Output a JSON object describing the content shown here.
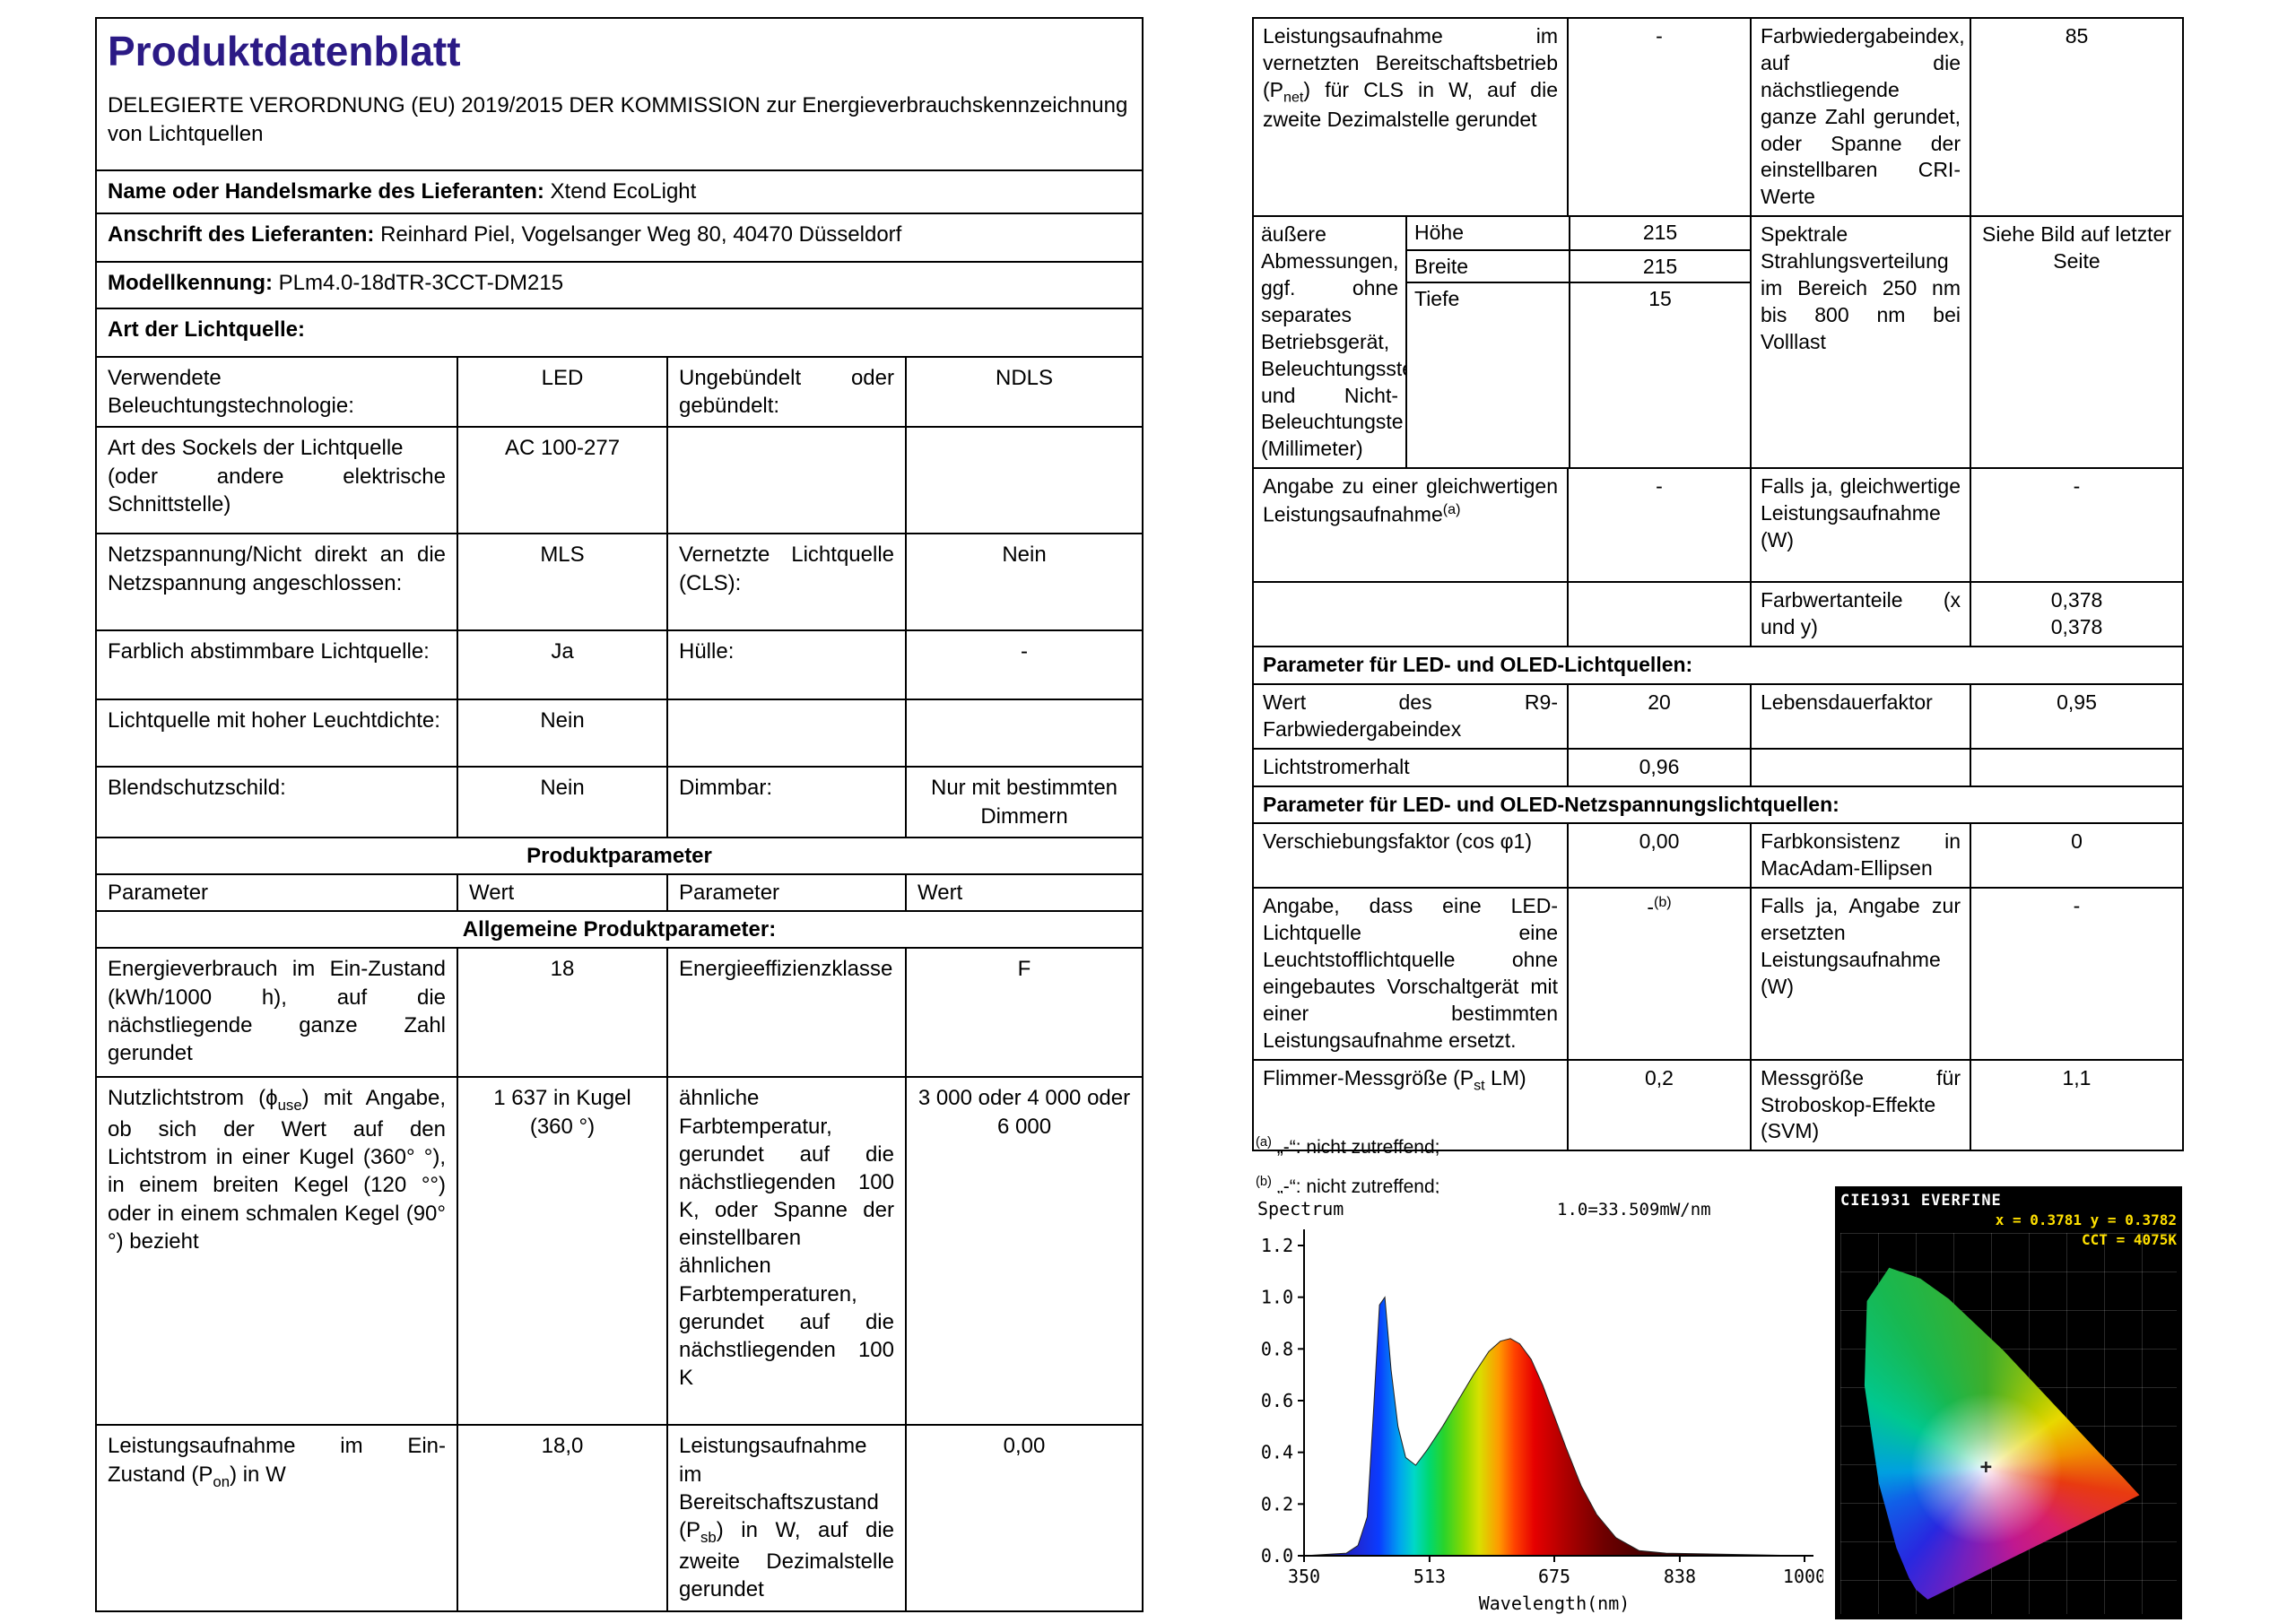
{
  "accent_color": "#2b1a85",
  "left": {
    "title": "Produktdatenblatt",
    "subtitle": "DELEGIERTE VERORDNUNG (EU) 2019/2015 DER KOMMISSION zur Energieverbrauchskennzeichnung von Lichtquellen",
    "supplier": {
      "name_label": "Name oder Handelsmarke des Lieferanten:",
      "name_value": "Xtend EcoLight",
      "address_label": "Anschrift des Lieferanten:",
      "address_value": "Reinhard Piel, Vogelsanger Weg 80, 40470 Düsseldorf",
      "model_label": "Modellkennung:",
      "model_value": "PLm4.0-18dTR-3CCT-DM215"
    },
    "art_header": "Art der Lichtquelle:",
    "type_rows": [
      {
        "c1": "Verwendete Beleuchtungstechnologie:",
        "c2": "LED",
        "c3": "Ungebündelt oder gebündelt:",
        "c4": "NDLS"
      },
      {
        "c1": "Art des Sockels der Lichtquelle<br>(oder andere elektrische Schnittstelle)",
        "c2": "AC 100-277",
        "c3": "",
        "c4": ""
      },
      {
        "c1": "Netzspannung/Nicht direkt an die Netzspannung angeschlossen:",
        "c2": "MLS",
        "c3": "Vernetzte Lichtquelle (CLS):",
        "c4": "Nein"
      },
      {
        "c1": "Farblich abstimmbare Lichtquelle:",
        "c2": "Ja",
        "c3": "Hülle:",
        "c4": "-"
      },
      {
        "c1": "Lichtquelle mit hoher Leuchtdichte:",
        "c2": "Nein",
        "c3": "",
        "c4": ""
      },
      {
        "c1": "Blendschutzschild:",
        "c2": "Nein",
        "c3": "Dimmbar:",
        "c4": "Nur mit bestimmten Dimmern"
      }
    ],
    "product_header": "Produktparameter",
    "col_headers": [
      "Parameter",
      "Wert",
      "Parameter",
      "Wert"
    ],
    "general_header": "Allgemeine Produktparameter:",
    "general_rows": [
      {
        "c1": "Energieverbrauch im Ein-Zustand (kWh/1000 h), auf die nächstliegende ganze Zahl gerundet",
        "c2": "18",
        "c3": "Energieeffizienzklasse",
        "c4": "F"
      },
      {
        "c1": "Nutzlichtstrom (ϕ<sub>use</sub>) mit Angabe, ob sich der Wert auf den Lichtstrom in einer Kugel (360° °), in einem breiten Kegel (120 °°) oder in einem schmalen Kegel (90° °) bezieht",
        "c2": "1 637 in Kugel (360 °)",
        "c3": "ähnliche Farbtemperatur, gerundet auf die nächstliegenden 100 K, oder Spanne der einstellbaren ähnlichen Farbtemperaturen, gerundet auf die nächstliegenden 100 K",
        "c4": "3 000 oder 4 000 oder 6 000"
      },
      {
        "c1": "Leistungsaufnahme im Ein-Zustand (P<sub>on</sub>) in W",
        "c2": "18,0",
        "c3": "Leistungsaufnahme im Bereitschaftszustand (P<sub>sb</sub>) in W, auf die zweite Dezimalstelle gerundet",
        "c4": "0,00"
      }
    ]
  },
  "right": {
    "r1": {
      "c1": "Leistungsaufnahme im vernetzten Bereitschaftsbetrieb (P<sub>net</sub>) für CLS in W, auf die zweite Dezimalstelle gerundet",
      "c2": "-",
      "c3": "Farbwiedergabeindex, auf die nächstliegende ganze Zahl gerundet, oder Spanne der einstellbaren CRI-Werte",
      "c4": "85"
    },
    "dim": {
      "label": "äußere Abmessungen, ggf. ohne separates Betriebsgerät, Beleuchtungsste und Nicht-Beleuchtungste (Millimeter)",
      "rows": [
        {
          "k": "Höhe",
          "v": "215"
        },
        {
          "k": "Breite",
          "v": "215"
        },
        {
          "k": "Tiefe",
          "v": "15"
        }
      ],
      "c3": "Spektrale Strahlungsverteilung im Bereich 250 nm bis 800 nm bei Volllast",
      "c4": "Siehe Bild auf letzter Seite"
    },
    "r3": {
      "c1": "Angabe zu einer gleichwertigen Leistungsaufnahme<sup>(a)</sup>",
      "c2": "-",
      "c3": "Falls ja, gleichwertige Leistungsaufnahme (W)",
      "c4": "-"
    },
    "r4": {
      "c1": "",
      "c2": "",
      "c3": "Farbwertanteile (x und y)",
      "c4": "0,378<br>0,378"
    },
    "led_header": "Parameter für LED- und OLED-Lichtquellen:",
    "r5": {
      "c1": "Wert des R9-Farbwiedergabeindex",
      "c2": "20",
      "c3": "Lebensdauerfaktor",
      "c4": "0,95"
    },
    "r6": {
      "c1": "Lichtstromerhalt",
      "c2": "0,96",
      "c3": "",
      "c4": ""
    },
    "mains_header": "Parameter für LED- und OLED-Netzspannungslichtquellen:",
    "r7": {
      "c1": "Verschiebungsfaktor (cos φ1)",
      "c2": "0,00",
      "c3": "Farbkonsistenz in MacAdam-Ellipsen",
      "c4": "0"
    },
    "r8": {
      "c1": "Angabe, dass eine LED-Lichtquelle eine Leuchtstofflichtquelle ohne eingebautes Vorschaltgerät mit einer bestimmten Leistungsaufnahme ersetzt.",
      "c2": "-<sup>(b)</sup>",
      "c3": "Falls ja, Angabe zur ersetzten Leistungsaufnahme (W)",
      "c4": "-"
    },
    "r9": {
      "c1": "Flimmer-Messgröße (P<sub>st</sub> LM)",
      "c2": "0,2",
      "c3": "Messgröße für Stroboskop-Effekte (SVM)",
      "c4": "1,1"
    }
  },
  "footnotes": [
    "<sup>(a)</sup> „-“: nicht zutreffend;",
    "<sup>(b)</sup> „-“: nicht zutreffend;"
  ],
  "chart_data": [
    {
      "type": "area",
      "name": "spectral-power-distribution",
      "title": "Spectrum",
      "annotation": "1.0=33.509mW/nm",
      "xlabel": "Wavelength(nm)",
      "x_ticks": [
        350,
        513,
        675,
        838,
        1000
      ],
      "y_ticks": [
        0.0,
        0.2,
        0.4,
        0.6,
        0.8,
        1.0,
        1.2
      ],
      "xlim": [
        350,
        1000
      ],
      "ylim": [
        0,
        1.2
      ],
      "x": [
        350,
        405,
        420,
        432,
        440,
        448,
        455,
        463,
        472,
        482,
        495,
        510,
        530,
        550,
        570,
        590,
        605,
        618,
        630,
        645,
        660,
        675,
        690,
        710,
        730,
        755,
        785,
        820,
        1000
      ],
      "y": [
        0,
        0.01,
        0.04,
        0.15,
        0.55,
        0.97,
        1.0,
        0.72,
        0.5,
        0.38,
        0.35,
        0.41,
        0.5,
        0.6,
        0.7,
        0.79,
        0.83,
        0.84,
        0.82,
        0.76,
        0.66,
        0.54,
        0.42,
        0.27,
        0.16,
        0.07,
        0.02,
        0.01,
        0
      ]
    },
    {
      "type": "chromaticity",
      "name": "cie1931-diagram",
      "title": "CIE1931",
      "brand": "EVERFINE",
      "xy_label": "x = 0.3781 y = 0.3782",
      "cct_label": "CCT = 4075K",
      "point": {
        "x": 0.3781,
        "y": 0.3782
      },
      "cct_kelvin": 4075
    }
  ]
}
